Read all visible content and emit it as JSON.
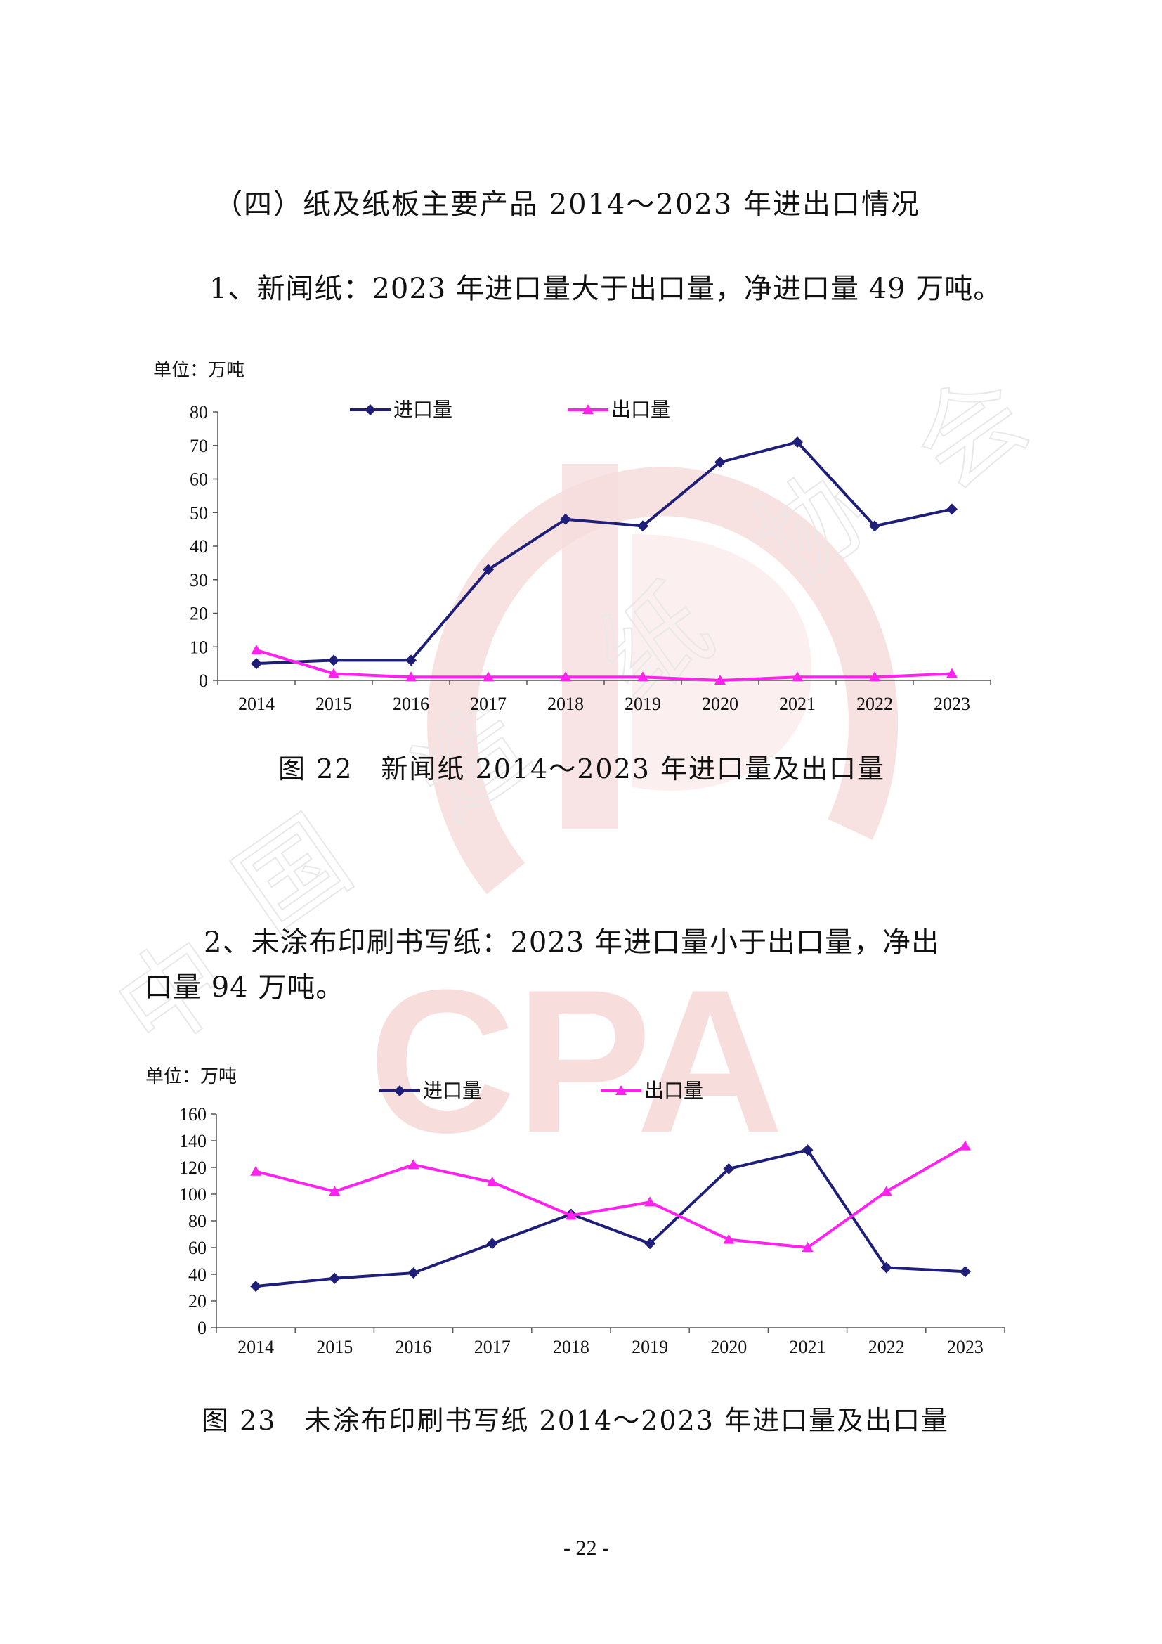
{
  "page": {
    "section_heading": "（四）纸及纸板主要产品 2014～2023 年进出口情况",
    "para1": "1、新闻纸：2023 年进口量大于出口量，净进口量 49 万吨。",
    "caption1": "图 22　新闻纸 2014～2023 年进口量及出口量",
    "para2_line1": "2、未涂布印刷书写纸：2023 年进口量小于出口量，净出",
    "para2_line2": "口量 94 万吨。",
    "caption2": "图 23　未涂布印刷书写纸 2014～2023 年进口量及出口量",
    "page_number": "- 22 -"
  },
  "watermark": {
    "letters": "CPA",
    "chars": [
      "中",
      "国",
      "造",
      "纸",
      "协",
      "会"
    ],
    "color": "#f4d3d3"
  },
  "colors": {
    "import": "#1f1f7a",
    "export": "#ff22ee"
  },
  "chart_data": [
    {
      "type": "line",
      "unit_label": "单位：万吨",
      "categories": [
        "2014",
        "2015",
        "2016",
        "2017",
        "2018",
        "2019",
        "2020",
        "2021",
        "2022",
        "2023"
      ],
      "ylim": [
        0,
        80
      ],
      "yticks": [
        0,
        10,
        20,
        30,
        40,
        50,
        60,
        70,
        80
      ],
      "legend_position": "top",
      "grid": false,
      "series": [
        {
          "name": "进口量",
          "marker": "diamond",
          "values": [
            5,
            6,
            6,
            33,
            48,
            46,
            65,
            71,
            46,
            51
          ]
        },
        {
          "name": "出口量",
          "marker": "triangle",
          "values": [
            9,
            2,
            1,
            1,
            1,
            1,
            0,
            1,
            1,
            2
          ]
        }
      ]
    },
    {
      "type": "line",
      "unit_label": "单位：万吨",
      "categories": [
        "2014",
        "2015",
        "2016",
        "2017",
        "2018",
        "2019",
        "2020",
        "2021",
        "2022",
        "2023"
      ],
      "ylim": [
        0,
        160
      ],
      "yticks": [
        0,
        20,
        40,
        60,
        80,
        100,
        120,
        140,
        160
      ],
      "legend_position": "top",
      "grid": false,
      "series": [
        {
          "name": "进口量",
          "marker": "diamond",
          "values": [
            31,
            37,
            41,
            63,
            85,
            63,
            119,
            133,
            45,
            42
          ]
        },
        {
          "name": "出口量",
          "marker": "triangle",
          "values": [
            117,
            102,
            122,
            109,
            84,
            94,
            66,
            60,
            102,
            136
          ]
        }
      ]
    }
  ]
}
